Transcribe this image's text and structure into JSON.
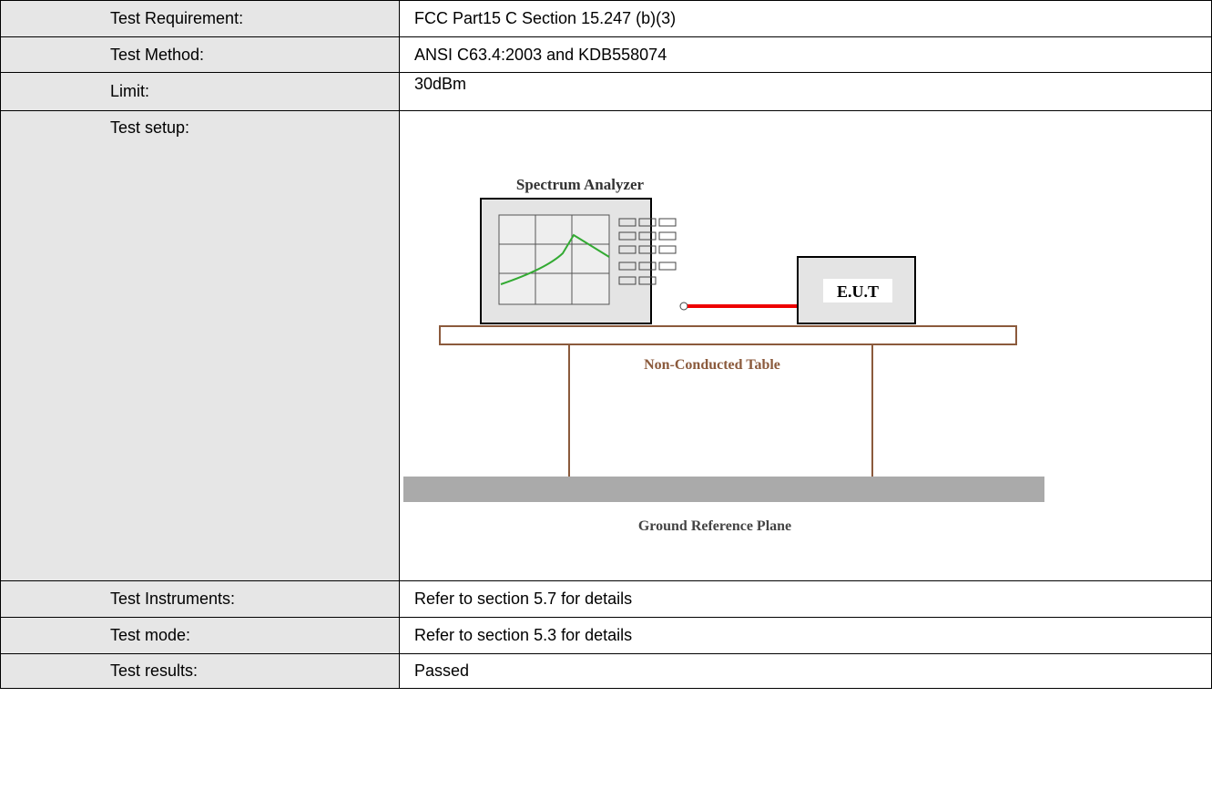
{
  "rows": [
    {
      "label": "Test Requirement:",
      "value": "FCC Part15 C Section 15.247 (b)(3)"
    },
    {
      "label": "Test Method:",
      "value": "ANSI C63.4:2003 and KDB558074"
    },
    {
      "label": "Limit:",
      "value": "30dBm"
    },
    {
      "label": "Test setup:"
    },
    {
      "label": "Test Instruments:",
      "value": "Refer to section 5.7 for details"
    },
    {
      "label": "Test mode:",
      "value": "Refer to section 5.3 for details"
    },
    {
      "label": "Test results:",
      "value": "Passed"
    }
  ],
  "diagram": {
    "analyzer": "Spectrum Analyzer",
    "eut": "E.U.T",
    "table": "Non-Conducted Table",
    "ground": "Ground Reference Plane"
  }
}
